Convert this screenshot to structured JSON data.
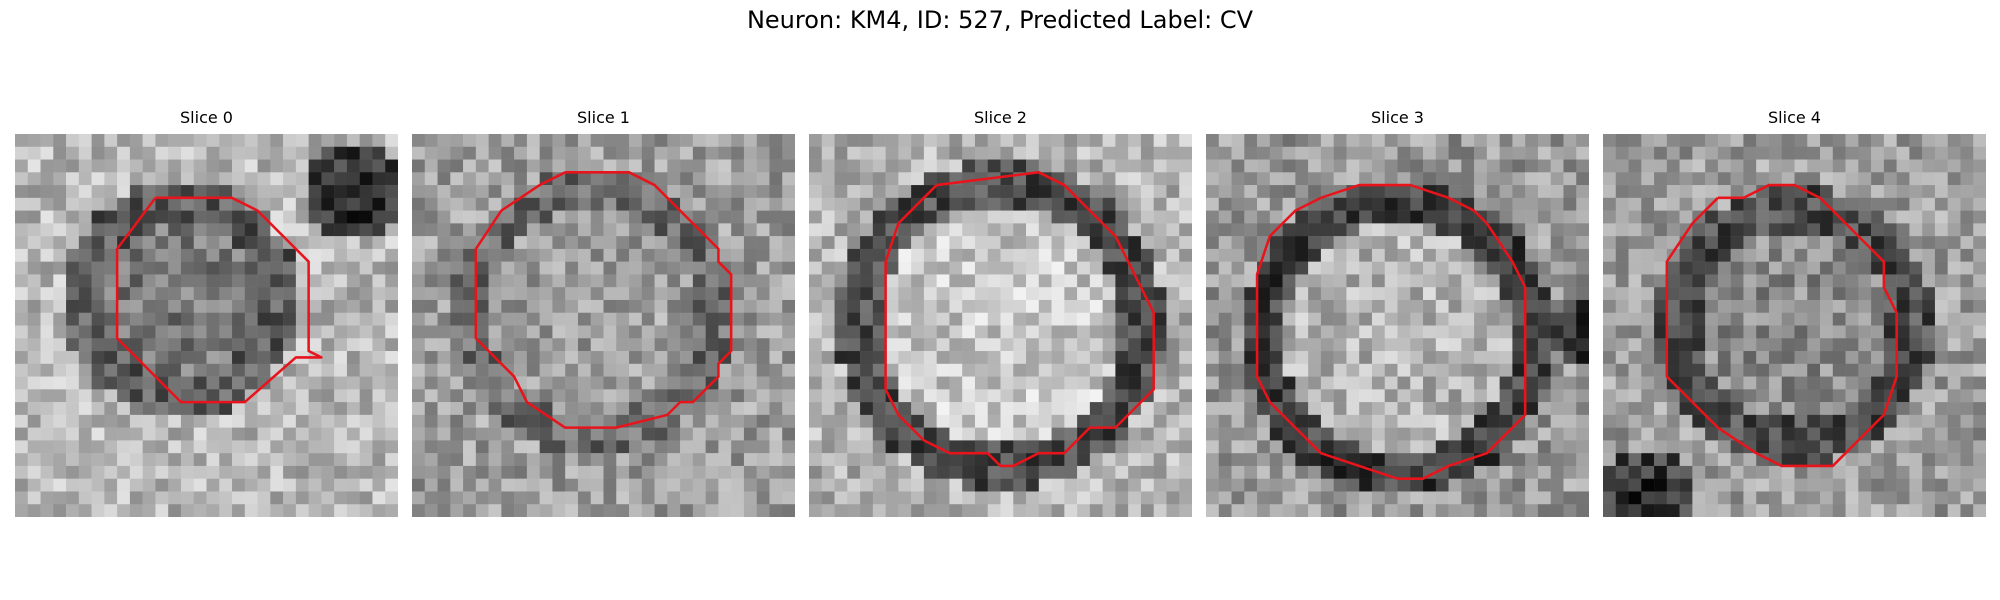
{
  "figure": {
    "title": "Neuron: KM4, ID: 527, Predicted Label: CV"
  },
  "colors": {
    "contour": "#e8141c"
  },
  "slices": [
    {
      "label": "Slice 0"
    },
    {
      "label": "Slice 1"
    },
    {
      "label": "Slice 2"
    },
    {
      "label": "Slice 3"
    },
    {
      "label": "Slice 4"
    }
  ]
}
